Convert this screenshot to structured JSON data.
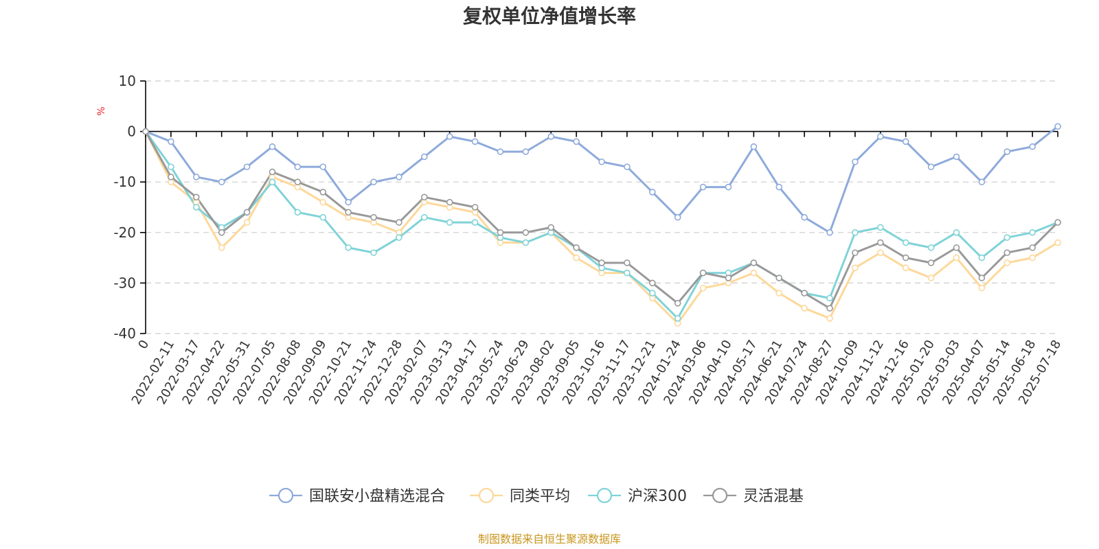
{
  "chart_data": {
    "type": "line",
    "title": "复权单位净值增长率",
    "ylabel": "%",
    "ylim": [
      -40,
      10
    ],
    "yticks": [
      10,
      0,
      -10,
      -20,
      -30,
      -40
    ],
    "grid": true,
    "legend_position": "bottom",
    "source": "制图数据来自恒生聚源数据库",
    "categories": [
      "0",
      "2022-02-11",
      "2022-03-17",
      "2022-04-22",
      "2022-05-31",
      "2022-07-05",
      "2022-08-08",
      "2022-09-09",
      "2022-10-21",
      "2022-11-24",
      "2022-12-28",
      "2023-02-07",
      "2023-03-13",
      "2023-04-17",
      "2023-05-24",
      "2023-06-29",
      "2023-08-02",
      "2023-09-05",
      "2023-10-16",
      "2023-11-17",
      "2023-12-21",
      "2024-01-24",
      "2024-03-06",
      "2024-04-10",
      "2024-05-17",
      "2024-06-21",
      "2024-07-24",
      "2024-08-27",
      "2024-10-09",
      "2024-11-12",
      "2024-12-16",
      "2025-01-20",
      "2025-03-03",
      "2025-04-07",
      "2025-05-14",
      "2025-06-18",
      "2025-07-18"
    ],
    "series": [
      {
        "name": "国联安小盘精选混合",
        "color": "#8eaadb",
        "values": [
          0,
          -2,
          -9,
          -10,
          -7,
          -3,
          -7,
          -7,
          -14,
          -10,
          -9,
          -5,
          -1,
          -2,
          -4,
          -4,
          -1,
          -2,
          -6,
          -7,
          -12,
          -17,
          -11,
          -11,
          -3,
          -11,
          -17,
          -20,
          -6,
          -1,
          -2,
          -7,
          -5,
          -10,
          -4,
          -3,
          1
        ]
      },
      {
        "name": "同类平均",
        "color": "#fdd89a",
        "values": [
          0,
          -10,
          -14,
          -23,
          -18,
          -9,
          -11,
          -14,
          -17,
          -18,
          -20,
          -14,
          -15,
          -16,
          -22,
          -22,
          -20,
          -25,
          -28,
          -28,
          -33,
          -38,
          -31,
          -30,
          -28,
          -32,
          -35,
          -37,
          -27,
          -24,
          -27,
          -29,
          -25,
          -31,
          -26,
          -25,
          -22
        ]
      },
      {
        "name": "沪深300",
        "color": "#7fd3d7",
        "values": [
          0,
          -7,
          -15,
          -19,
          -16,
          -10,
          -16,
          -17,
          -23,
          -24,
          -21,
          -17,
          -18,
          -18,
          -21,
          -22,
          -20,
          -23,
          -27,
          -28,
          -32,
          -37,
          -28,
          -28,
          -26,
          -29,
          -32,
          -33,
          -20,
          -19,
          -22,
          -23,
          -20,
          -25,
          -21,
          -20,
          -18
        ]
      },
      {
        "name": "灵活混基",
        "color": "#999999",
        "values": [
          0,
          -9,
          -13,
          -20,
          -16,
          -8,
          -10,
          -12,
          -16,
          -17,
          -18,
          -13,
          -14,
          -15,
          -20,
          -20,
          -19,
          -23,
          -26,
          -26,
          -30,
          -34,
          -28,
          -29,
          -26,
          -29,
          -32,
          -35,
          -24,
          -22,
          -25,
          -26,
          -23,
          -29,
          -24,
          -23,
          -18
        ]
      }
    ]
  }
}
